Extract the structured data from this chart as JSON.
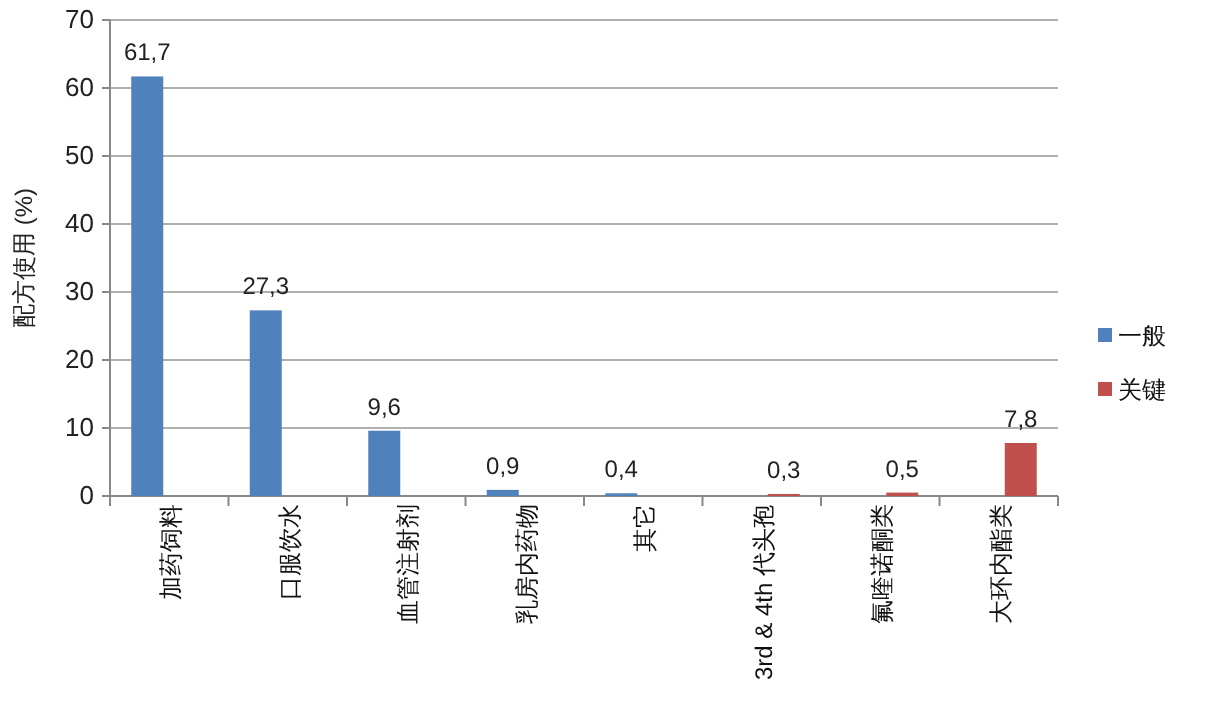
{
  "chart_data": {
    "type": "bar",
    "ylabel": "配方使用 (%)",
    "categories": [
      "加药饲料",
      "口服饮水",
      "血管注射剂",
      "乳房内药物",
      "其它",
      "3rd & 4th 代头孢",
      "氟喹诺酮类",
      "大环内酯类"
    ],
    "series": [
      {
        "name": "一般",
        "color": "#4f81bd",
        "values": [
          61.7,
          27.3,
          9.6,
          0.9,
          0.4,
          null,
          null,
          null
        ],
        "value_labels": [
          "61,7",
          "27,3",
          "9,6",
          "0,9",
          "0,4",
          null,
          null,
          null
        ]
      },
      {
        "name": "关键",
        "color": "#c0504d",
        "values": [
          null,
          null,
          null,
          null,
          null,
          0.3,
          0.5,
          7.8
        ],
        "value_labels": [
          null,
          null,
          null,
          null,
          null,
          "0,3",
          "0,5",
          "7,8"
        ]
      }
    ],
    "ylim": [
      0,
      70
    ],
    "yticks": [
      0,
      10,
      20,
      30,
      40,
      50,
      60,
      70
    ],
    "grid": "y",
    "legend": "right"
  }
}
